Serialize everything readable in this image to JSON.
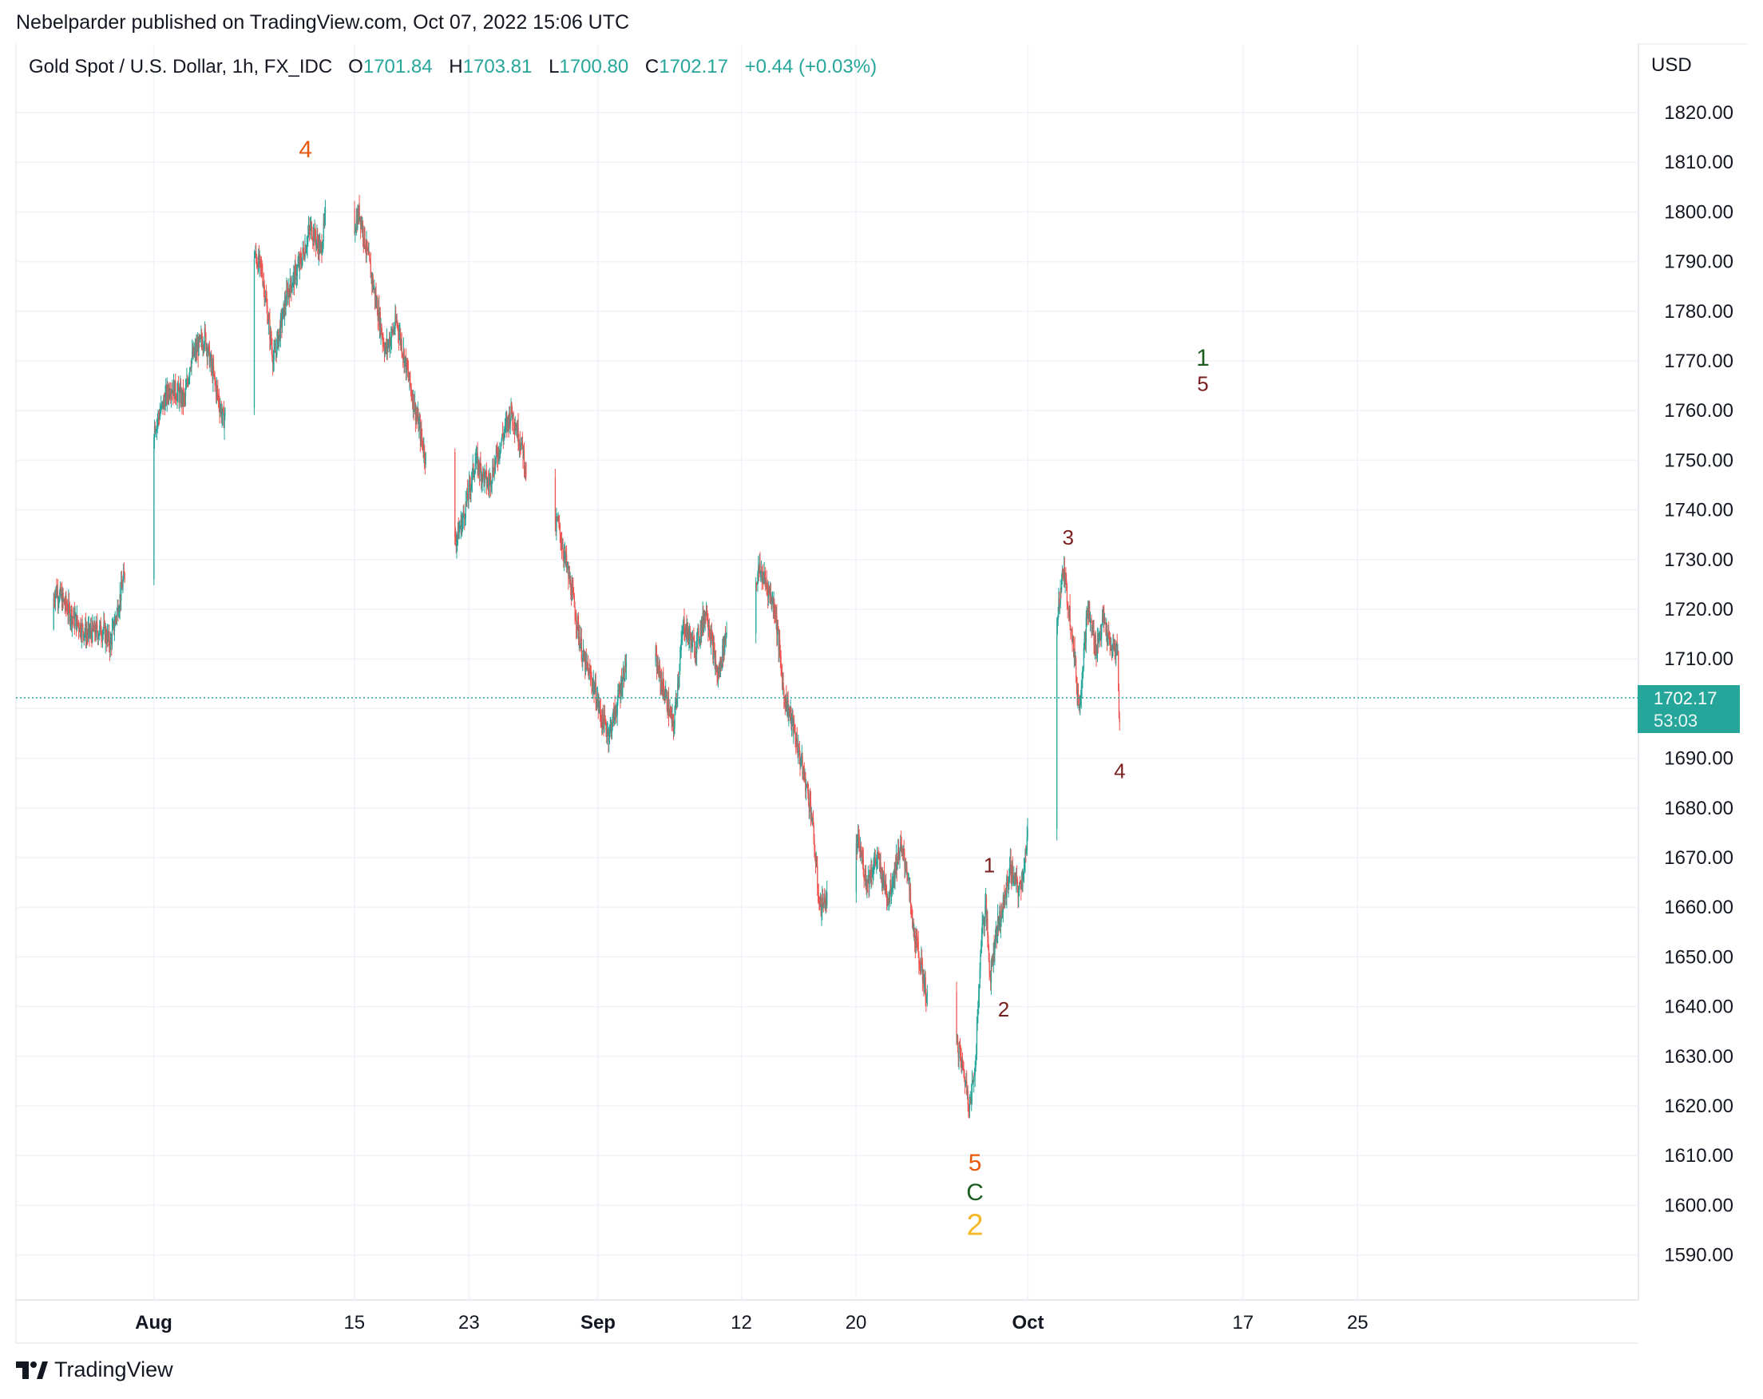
{
  "publisher_line": "Nebelparder published on TradingView.com, Oct 07, 2022 15:06 UTC",
  "legend": {
    "symbol": "Gold Spot / U.S. Dollar, 1h, FX_IDC",
    "o_label": "O",
    "o_value": "1701.84",
    "h_label": "H",
    "h_value": "1703.81",
    "l_label": "L",
    "l_value": "1700.80",
    "c_label": "C",
    "c_value": "1702.17",
    "change": "+0.44 (+0.03%)"
  },
  "currency": "USD",
  "last_price": {
    "price": "1702.17",
    "countdown": "53:03"
  },
  "footer_brand": "TradingView",
  "colors": {
    "up": "#26a69a",
    "down": "#ef5350",
    "grid": "#f0f3fa",
    "text": "#131722"
  },
  "chart_data": {
    "type": "candlestick",
    "title": "Gold Spot / U.S. Dollar, 1h, FX_IDC",
    "ylim": [
      1580,
      1830
    ],
    "y_ticks": [
      "1820.00",
      "1810.00",
      "1800.00",
      "1790.00",
      "1780.00",
      "1770.00",
      "1760.00",
      "1750.00",
      "1740.00",
      "1730.00",
      "1720.00",
      "1710.00",
      "1700.00",
      "1690.00",
      "1680.00",
      "1670.00",
      "1660.00",
      "1650.00",
      "1640.00",
      "1630.00",
      "1620.00",
      "1610.00",
      "1600.00",
      "1590.00"
    ],
    "x_ticks": [
      "Aug",
      "15",
      "23",
      "Sep",
      "12",
      "20",
      "Oct",
      "17",
      "25"
    ],
    "x_tick_days": [
      1,
      15,
      23,
      32,
      42,
      50,
      62,
      77,
      85
    ],
    "x_range_days": [
      -6.4,
      87
    ],
    "grid": true,
    "path_days": [
      -6.4,
      -5.8,
      -4.5,
      -3.6,
      -2.5,
      -2.0,
      -1.2,
      0.2,
      1.0,
      2.2,
      3.2,
      3.6,
      4.6,
      5.2,
      5.9,
      7.0,
      8.0,
      8.6,
      9.4,
      10.4,
      11.3,
      12.0,
      12.7,
      13.3,
      14.0,
      14.8,
      15.4,
      16.3,
      17.2,
      18.0,
      19.3,
      20.2,
      21.1,
      22.0,
      22.6,
      23.5,
      24.4,
      25.3,
      26.0,
      26.8,
      27.5,
      28.3,
      29.2,
      30.3,
      31.0,
      31.7,
      32.3,
      32.8,
      33.3,
      34.2,
      35.2,
      36.0,
      36.8,
      37.3,
      38.0,
      38.8,
      39.6,
      40.4,
      41.4,
      42.3,
      43.3,
      43.8,
      44.4,
      45.0,
      45.6,
      46.3,
      46.9,
      47.5,
      48.1,
      48.7,
      49.5,
      50.2,
      50.8,
      51.5,
      52.3,
      53.1,
      53.6,
      54.0,
      54.8,
      55.6,
      56.3,
      57.0,
      57.6,
      58.0,
      58.4,
      58.8,
      59.1,
      59.4,
      59.8,
      60.3,
      60.8,
      61.4,
      61.9,
      62.7,
      63.3,
      63.9,
      64.5,
      65.1,
      65.6,
      66.2,
      66.8,
      67.3,
      67.8,
      68.3,
      68.4
    ],
    "path_values": [
      1716,
      1724,
      1718,
      1715,
      1716,
      1713,
      1724,
      1744,
      1756,
      1765,
      1762,
      1770,
      1775,
      1767,
      1758,
      1772,
      1792,
      1788,
      1770,
      1784,
      1790,
      1797,
      1792,
      1805,
      1790,
      1795,
      1800,
      1786,
      1772,
      1778,
      1760,
      1748,
      1738,
      1733,
      1738,
      1750,
      1745,
      1754,
      1760,
      1752,
      1737,
      1722,
      1738,
      1722,
      1710,
      1705,
      1698,
      1695,
      1700,
      1712,
      1708,
      1710,
      1702,
      1696,
      1717,
      1712,
      1720,
      1706,
      1722,
      1718,
      1728,
      1725,
      1720,
      1703,
      1697,
      1688,
      1680,
      1660,
      1662,
      1672,
      1668,
      1673,
      1665,
      1670,
      1662,
      1672,
      1668,
      1656,
      1645,
      1630,
      1622,
      1634,
      1626,
      1620,
      1630,
      1655,
      1660,
      1646,
      1655,
      1660,
      1668,
      1663,
      1670,
      1700,
      1702,
      1715,
      1728,
      1716,
      1700,
      1720,
      1712,
      1718,
      1712,
      1712,
      1698
    ],
    "annotations": [
      {
        "text": "4",
        "day": 11.6,
        "price": 1811,
        "color": "#e8590c",
        "size": 30
      },
      {
        "text": "1",
        "day": 59.3,
        "price": 1667,
        "color": "#7a1f1f",
        "size": 26
      },
      {
        "text": "2",
        "day": 60.3,
        "price": 1638,
        "color": "#7a1f1f",
        "size": 26
      },
      {
        "text": "3",
        "day": 64.8,
        "price": 1733,
        "color": "#7a1f1f",
        "size": 26
      },
      {
        "text": "4",
        "day": 68.4,
        "price": 1686,
        "color": "#7a1f1f",
        "size": 26
      },
      {
        "text": "5",
        "day": 58.3,
        "price": 1607,
        "color": "#e8590c",
        "size": 30
      },
      {
        "text": "C",
        "day": 58.3,
        "price": 1601,
        "color": "#1b5e20",
        "size": 30
      },
      {
        "text": "2",
        "day": 58.3,
        "price": 1594,
        "color": "#f5b829",
        "size": 38
      },
      {
        "text": "1",
        "day": 74.2,
        "price": 1769,
        "color": "#1b5e20",
        "size": 30
      },
      {
        "text": "5",
        "day": 74.2,
        "price": 1764,
        "color": "#7a1f1f",
        "size": 26
      }
    ]
  }
}
